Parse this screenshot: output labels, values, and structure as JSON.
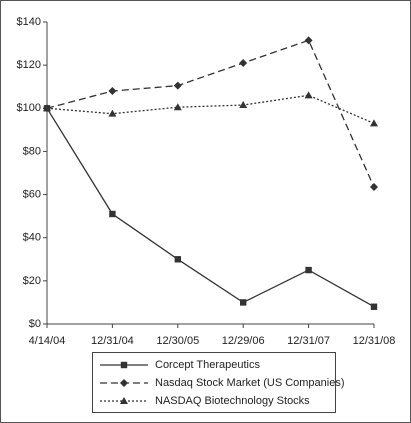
{
  "chart_data": {
    "type": "line",
    "categories": [
      "4/14/04",
      "12/31/04",
      "12/30/05",
      "12/29/06",
      "12/31/07",
      "12/31/08"
    ],
    "series": [
      {
        "name": "Corcept Therapeutics",
        "color": "#333333",
        "dash": "solid",
        "marker": "square",
        "values": [
          100,
          51,
          30,
          10,
          25,
          8
        ]
      },
      {
        "name": "Nasdaq Stock Market (US Companies)",
        "color": "#333333",
        "dash": "dashed",
        "marker": "diamond",
        "values": [
          100,
          108,
          110.5,
          121,
          131.5,
          63.5
        ]
      },
      {
        "name": "NASDAQ Biotechnology Stocks",
        "color": "#333333",
        "dash": "dotted",
        "marker": "triangle",
        "values": [
          100,
          97.5,
          100.5,
          101.5,
          106,
          93
        ]
      }
    ],
    "ylim": [
      0,
      140
    ],
    "yticks": [
      {
        "value": 0,
        "label": "$0"
      },
      {
        "value": 20,
        "label": "$20"
      },
      {
        "value": 40,
        "label": "$40"
      },
      {
        "value": 60,
        "label": "$60"
      },
      {
        "value": 80,
        "label": "$80"
      },
      {
        "value": 100,
        "label": "$100"
      },
      {
        "value": 120,
        "label": "$120"
      },
      {
        "value": 140,
        "label": "$140"
      }
    ],
    "grid": false,
    "legend": "bottom"
  }
}
